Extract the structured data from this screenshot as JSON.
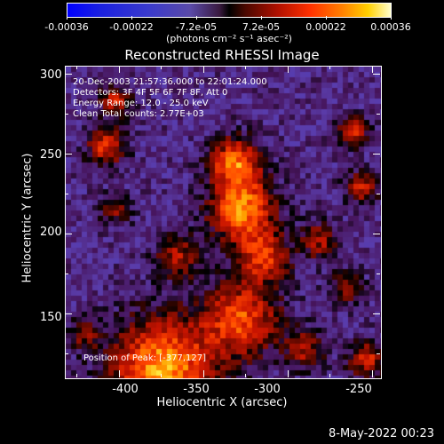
{
  "colorbar": {
    "ticks": [
      "-0.00036",
      "-0.00022",
      "-7.2e-05",
      "7.2e-05",
      "0.00022",
      "0.00036"
    ],
    "units": "(photons cm⁻² s⁻¹ asec⁻²)"
  },
  "title": "Reconstructed RHESSI Image",
  "overlay": {
    "time": "20-Dec-2003 21:57:36.000 to 22:01:24.000",
    "detectors": "Detectors: 3F 4F 5F 6F 7F 8F, Att 0",
    "energy": "Energy Range: 12.0 - 25.0 keV",
    "clean": "Clean    Total counts: 2.77E+03",
    "position": "Position of Peak: [-377,127]"
  },
  "x_axis": {
    "label": "Heliocentric X (arcsec)",
    "ticks": [
      "-400",
      "-350",
      "-300",
      "-250"
    ],
    "range": [
      -432,
      -245
    ]
  },
  "y_axis": {
    "label": "Heliocentric Y (arcsec)",
    "ticks": [
      "150",
      "200",
      "250",
      "300"
    ],
    "range": [
      110,
      305
    ]
  },
  "timestamp": "8-May-2022 00:23",
  "colors": {
    "background": "#000000",
    "text": "#ffffff"
  }
}
